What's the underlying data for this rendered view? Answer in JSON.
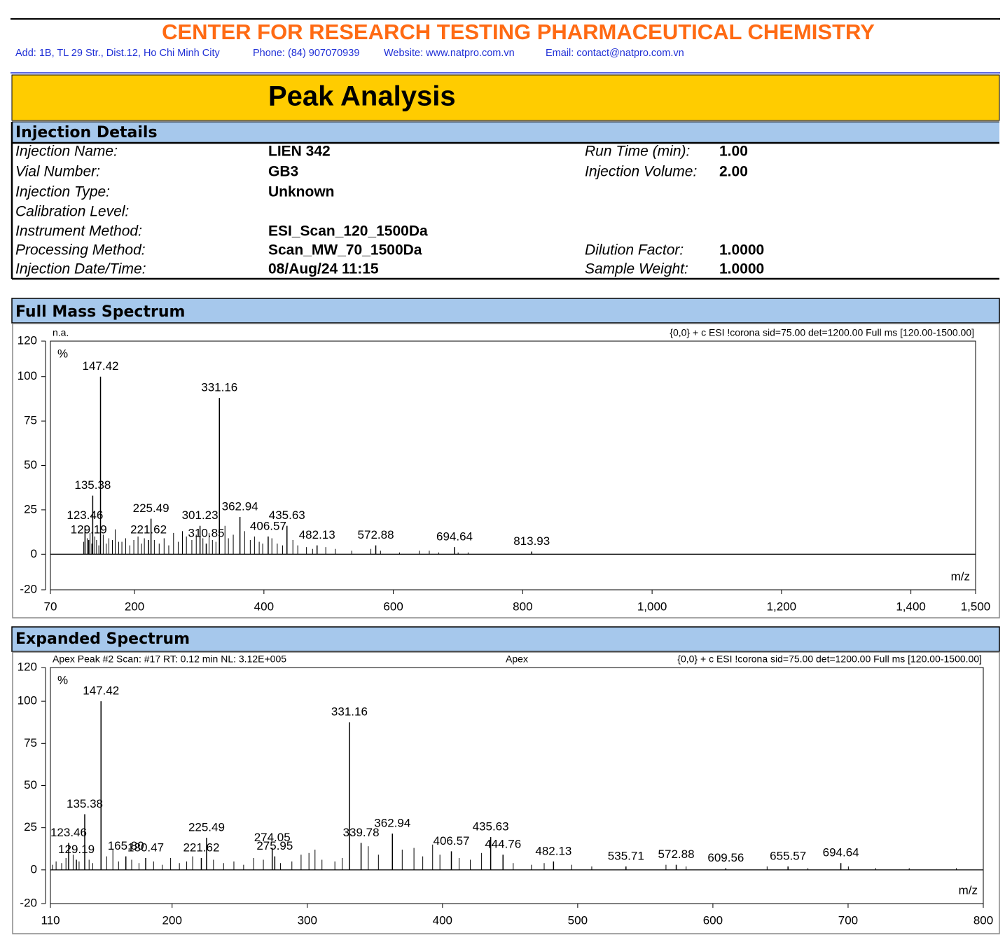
{
  "header": {
    "title": "CENTER FOR RESEARCH TESTING PHARMACEUTICAL CHEMISTRY",
    "address": "Add: 1B, TL 29 Str., Dist.12, Ho Chi Minh City",
    "phone": "Phone: (84) 907070939",
    "website": "Website: www.natpro.com.vn",
    "email": "Email: contact@natpro.com.vn"
  },
  "banner": "Peak Analysis",
  "injection_details": {
    "title": "Injection Details",
    "rows": [
      {
        "label": "Injection Name:",
        "value": "LIEN 342",
        "label2": "Run Time (min):",
        "value2": "1.00"
      },
      {
        "label": "Vial Number:",
        "value": "GB3",
        "label2": "Injection Volume:",
        "value2": "2.00"
      },
      {
        "label": "Injection Type:",
        "value": "Unknown"
      },
      {
        "label": "Calibration Level:"
      },
      {
        "label": "Instrument Method:",
        "value": "ESI_Scan_120_1500Da"
      },
      {
        "label": "Processing Method:",
        "value": "Scan_MW_70_1500Da",
        "label2": "Dilution Factor:",
        "value2": "1.0000"
      },
      {
        "label": "Injection Date/Time:",
        "value": "08/Aug/24 11:15",
        "label2": "Sample Weight:",
        "value2": "1.0000"
      }
    ]
  },
  "chart_data": [
    {
      "type": "stick",
      "title": "Full Mass Spectrum",
      "annotations": {
        "left": "n.a.",
        "right": "{0,0}  + c ESI !corona sid=75.00  det=1200.00 Full ms [120.00-1500.00]",
        "y_unit": "%",
        "x_unit": "m/z"
      },
      "xlim": [
        70,
        1500
      ],
      "xticks": [
        70,
        200,
        400,
        600,
        800,
        {
          "value": 1000,
          "label": "1,000"
        },
        {
          "value": 1200,
          "label": "1,200"
        },
        {
          "value": 1400,
          "label": "1,400"
        },
        {
          "value": 1500,
          "label": "1,500"
        }
      ],
      "ylim": [
        -20,
        120
      ],
      "yticks": [
        -20,
        0,
        25,
        50,
        75,
        100,
        120
      ],
      "color": "#000000",
      "peaks": {
        "x": [
          123.46,
          129.19,
          135.38,
          147.42,
          221.62,
          225.49,
          301.23,
          310.85,
          331.16,
          362.94,
          406.57,
          435.63,
          482.13,
          572.88,
          694.64,
          813.93
        ],
        "labels": [
          "123.46",
          "129.19",
          "135.38",
          "147.42",
          "221.62",
          "225.49",
          "301.23",
          "310.85",
          "331.16",
          "362.94",
          "406.57",
          "435.63",
          "482.13",
          "572.88",
          "694.64",
          "813.93"
        ],
        "values": [
          16,
          8,
          33,
          100,
          8,
          20,
          16,
          6,
          88,
          21,
          10,
          16,
          5,
          5,
          4,
          1.5
        ]
      },
      "minor_peaks": {
        "x": [
          121.5,
          126.8,
          131.2,
          133.9,
          138.6,
          141.3,
          144.8,
          151.6,
          156.2,
          160.4,
          165.8,
          170.1,
          175.5,
          180.47,
          186.3,
          192.7,
          198.9,
          205.4,
          210.8,
          215.2,
          230.6,
          238.1,
          245.7,
          252.9,
          260.3,
          267.5,
          274.05,
          280.2,
          288.6,
          295.4,
          305.7,
          315.2,
          320.4,
          325.8,
          339.78,
          345.1,
          352.6,
          370.2,
          378.9,
          385.4,
          392.7,
          398.1,
          412.3,
          420.6,
          428.9,
          444.76,
          452.3,
          465.8,
          475.2,
          495.6,
          510.4,
          535.71,
          565.3,
          580.2,
          609.56,
          640.1,
          655.57,
          670.3,
          700.2,
          715.6
        ],
        "values": [
          7,
          9,
          12,
          6,
          10,
          8,
          5,
          11,
          6,
          9,
          8,
          14,
          7,
          7,
          9,
          5,
          8,
          10,
          6,
          9,
          8,
          6,
          9,
          5,
          12,
          7,
          13,
          10,
          8,
          11,
          9,
          12,
          8,
          7,
          16,
          9,
          11,
          13,
          8,
          10,
          7,
          6,
          9,
          6,
          5,
          8,
          5,
          4,
          3,
          4,
          3,
          2,
          3,
          2,
          1,
          2,
          2,
          1,
          1,
          1
        ]
      }
    },
    {
      "type": "stick",
      "title": "Expanded Spectrum",
      "annotations": {
        "left": "Apex Peak #2 Scan: #17  RT: 0.12 min  NL: 3.12E+005",
        "center": "Apex",
        "right": "{0,0}  + c ESI !corona sid=75.00  det=1200.00 Full ms [120.00-1500.00]",
        "y_unit": "%",
        "x_unit": "m/z"
      },
      "xlim": [
        110,
        800
      ],
      "xticks": [
        110,
        200,
        300,
        400,
        500,
        600,
        700,
        800
      ],
      "ylim": [
        -20,
        120
      ],
      "yticks": [
        -20,
        0,
        25,
        50,
        75,
        100,
        120
      ],
      "color": "#000000",
      "peaks": {
        "x": [
          123.46,
          129.19,
          135.38,
          147.42,
          165.8,
          180.47,
          221.62,
          225.49,
          274.05,
          275.95,
          331.16,
          339.78,
          362.94,
          406.57,
          435.63,
          444.76,
          482.13,
          535.71,
          572.88,
          609.56,
          655.57,
          694.64
        ],
        "labels": [
          "123.46",
          "129.19",
          "135.38",
          "147.42",
          "165.80",
          "180.47",
          "221.62",
          "225.49",
          "274.05",
          "275.95",
          "331.16",
          "339.78",
          "362.94",
          "406.57",
          "435.63",
          "444.76",
          "482.13",
          "535.71",
          "572.88",
          "609.56",
          "655.57",
          "694.64"
        ],
        "values": [
          16,
          6,
          33,
          100,
          8,
          7,
          7,
          19,
          13,
          8,
          87.5,
          16,
          21.5,
          11,
          19.5,
          9,
          5,
          2,
          3,
          1,
          2,
          4
        ]
      },
      "minor_peaks": {
        "x": [
          111.5,
          114.2,
          118.3,
          121.5,
          126.8,
          131.2,
          138.6,
          141.3,
          151.6,
          156.2,
          160.4,
          170.1,
          175.5,
          186.3,
          192.7,
          198.9,
          205.4,
          210.8,
          215.2,
          230.6,
          238.1,
          245.7,
          252.9,
          260.3,
          267.5,
          280.2,
          288.6,
          295.4,
          301.23,
          305.7,
          310.85,
          320.4,
          325.8,
          345.1,
          352.6,
          370.2,
          378.9,
          385.4,
          392.7,
          398.1,
          412.3,
          420.6,
          428.9,
          452.3,
          465.8,
          475.2,
          495.6,
          510.4,
          565.3,
          580.2,
          640.1,
          670.3,
          700.2,
          720.5,
          745.2,
          780.1
        ],
        "values": [
          3,
          5,
          4,
          7,
          9,
          5,
          6,
          4,
          8,
          12,
          5,
          6,
          4,
          5,
          3,
          7,
          4,
          5,
          8,
          6,
          4,
          5,
          3,
          7,
          6,
          4,
          5,
          9,
          10,
          12,
          6,
          5,
          7,
          14,
          9,
          12,
          13,
          8,
          15,
          9,
          7,
          6,
          10,
          4,
          3,
          4,
          3,
          2,
          3,
          2,
          2,
          1,
          2,
          1,
          1,
          1
        ]
      }
    }
  ]
}
